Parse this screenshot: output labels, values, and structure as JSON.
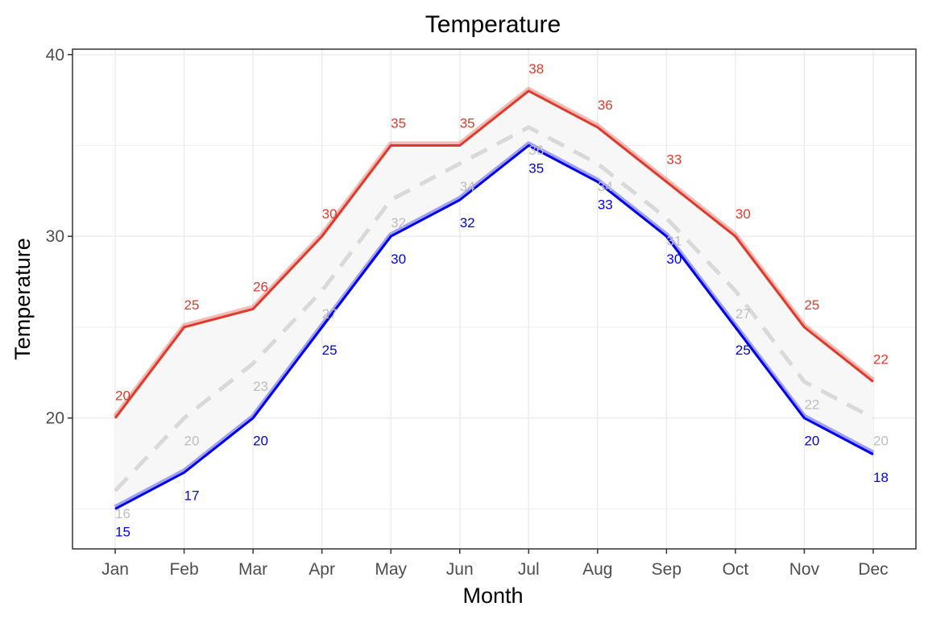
{
  "chart_data": {
    "type": "line",
    "title": "Temperature",
    "xlabel": "Month",
    "ylabel": "Temperature",
    "categories": [
      "Jan",
      "Feb",
      "Mar",
      "Apr",
      "May",
      "Jun",
      "Jul",
      "Aug",
      "Sep",
      "Oct",
      "Nov",
      "Dec"
    ],
    "ylim": [
      12.8,
      40.3
    ],
    "yticks": [
      20,
      30,
      40
    ],
    "grid": true,
    "legend": "none",
    "ribbon": {
      "upper_series": 0,
      "lower_series": 2,
      "fill": "#f7f7f7"
    },
    "series": [
      {
        "values": [
          20,
          25,
          26,
          30,
          35,
          35,
          38,
          36,
          33,
          30,
          25,
          22
        ],
        "color": "#e03a2c",
        "style": "solid",
        "label_position": "above"
      },
      {
        "values": [
          16,
          20,
          23,
          27,
          32,
          34,
          36,
          34,
          31,
          27,
          22,
          20
        ],
        "color": "#bebebe",
        "line_color": "#d9d9d9",
        "style": "dashed",
        "label_position": "below"
      },
      {
        "values": [
          15,
          17,
          20,
          25,
          30,
          32,
          35,
          33,
          30,
          25,
          20,
          18
        ],
        "color": "#0000ee",
        "style": "solid",
        "label_position": "below"
      }
    ]
  }
}
